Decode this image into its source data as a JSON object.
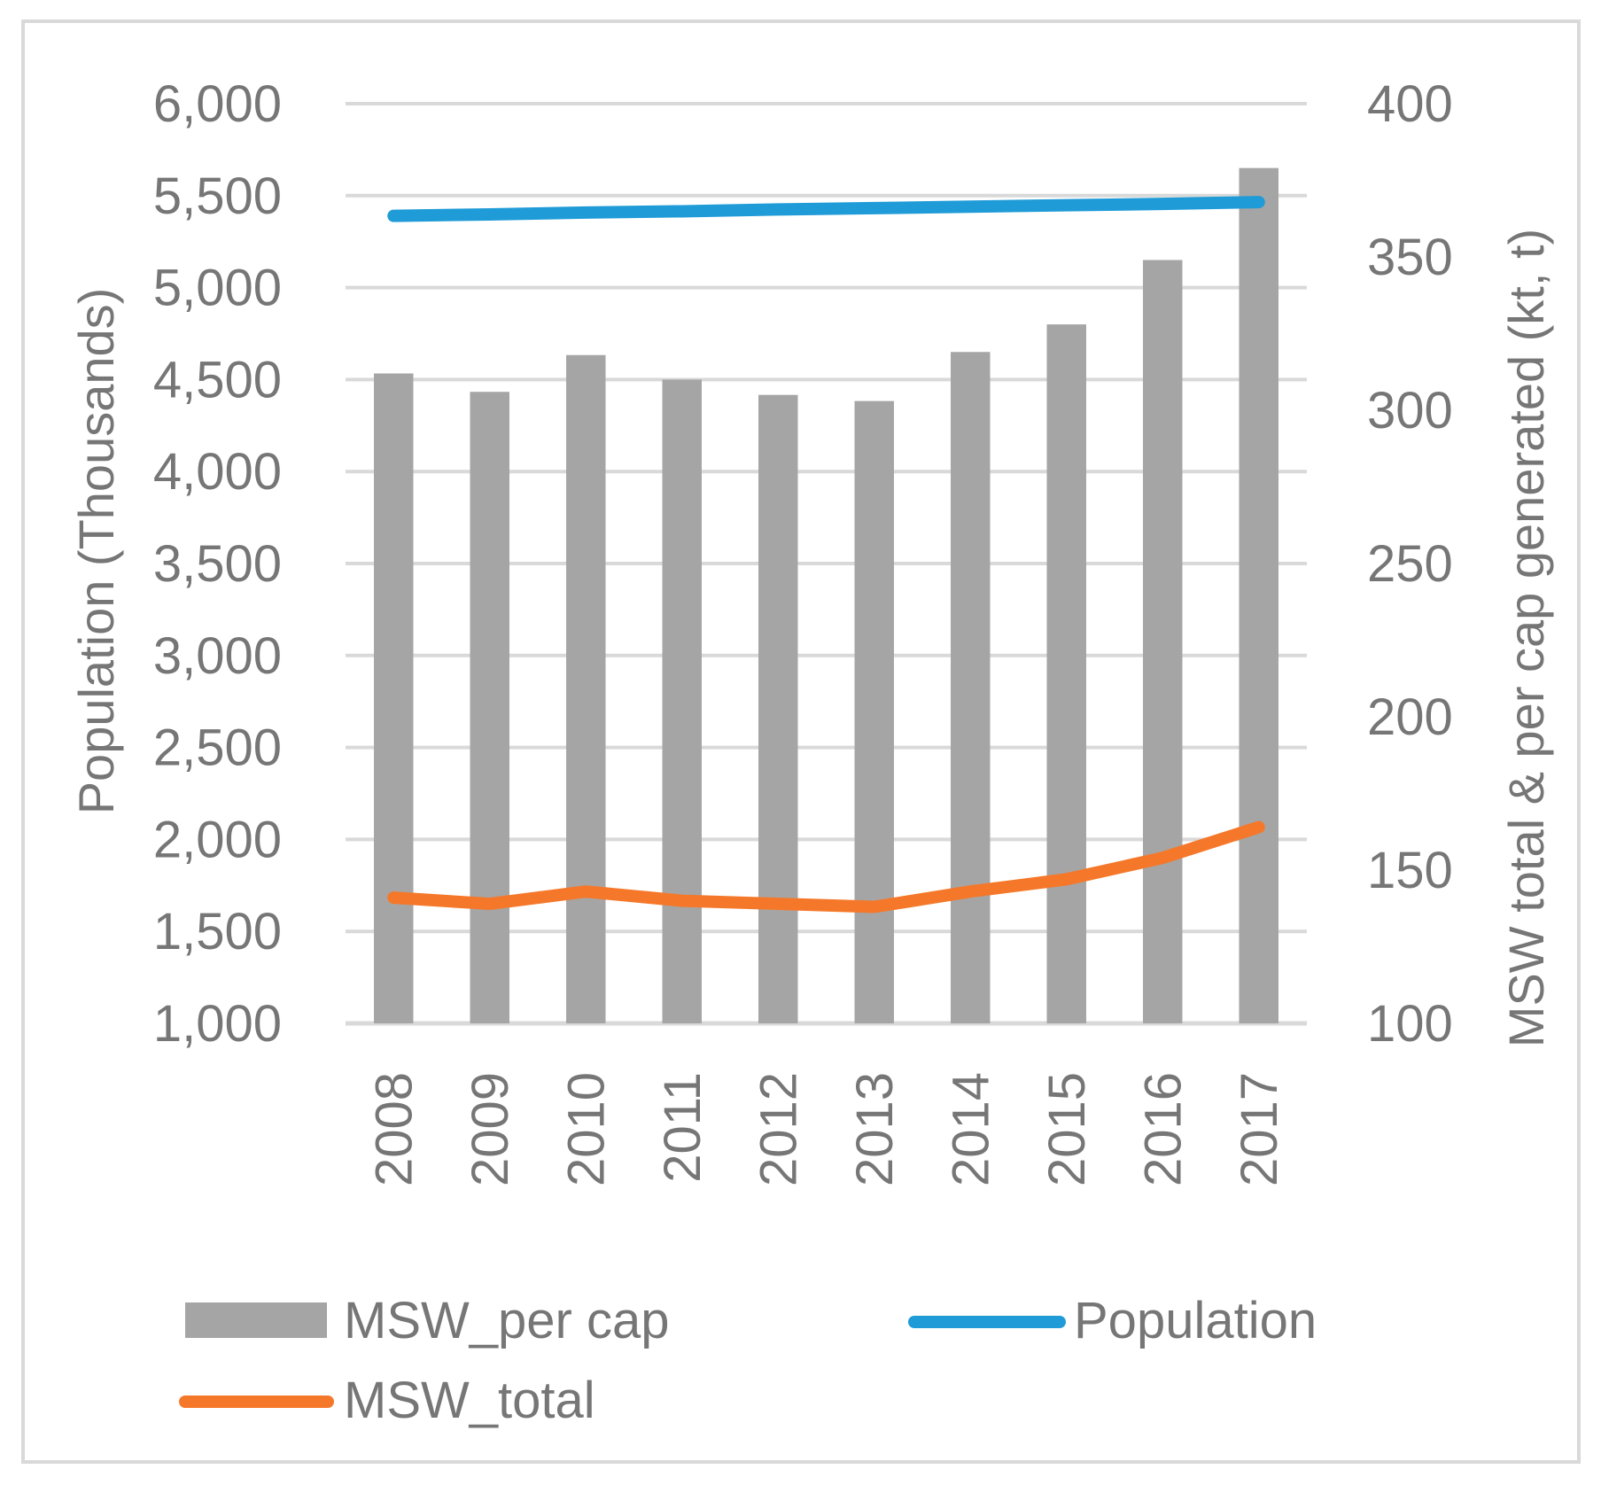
{
  "chart_data": {
    "type": "bar+line",
    "title": "",
    "categories": [
      "2008",
      "2009",
      "2010",
      "2011",
      "2012",
      "2013",
      "2014",
      "2015",
      "2016",
      "2017"
    ],
    "series": [
      {
        "name": "MSW_per cap",
        "type": "bar",
        "axis": "right",
        "color": "#a5a5a5",
        "values": [
          312,
          306,
          318,
          310,
          305,
          303,
          319,
          328,
          349,
          379
        ]
      },
      {
        "name": "Population",
        "type": "line",
        "axis": "left",
        "color": "#1f9bd7",
        "values": [
          5390,
          5398,
          5408,
          5415,
          5425,
          5432,
          5440,
          5448,
          5455,
          5465
        ]
      },
      {
        "name": "MSW_total",
        "type": "line",
        "axis": "right",
        "color": "#f5782a",
        "values": [
          141,
          139,
          143,
          140,
          139,
          138,
          143,
          147,
          154,
          164
        ]
      }
    ],
    "yleft": {
      "label": "Population (Thousands)",
      "min": 1000,
      "max": 6000,
      "ticks": [
        "1,000",
        "1,500",
        "2,000",
        "2,500",
        "3,000",
        "3,500",
        "4,000",
        "4,500",
        "5,000",
        "5,500",
        "6,000"
      ]
    },
    "yright": {
      "label": "MSW total & per cap generated (kt, t)",
      "min": 100,
      "max": 400,
      "ticks": [
        "100",
        "150",
        "200",
        "250",
        "300",
        "350",
        "400"
      ]
    },
    "grid": true,
    "legend": {
      "position": "bottom",
      "items": [
        "MSW_per cap",
        "Population",
        "MSW_total"
      ]
    }
  }
}
